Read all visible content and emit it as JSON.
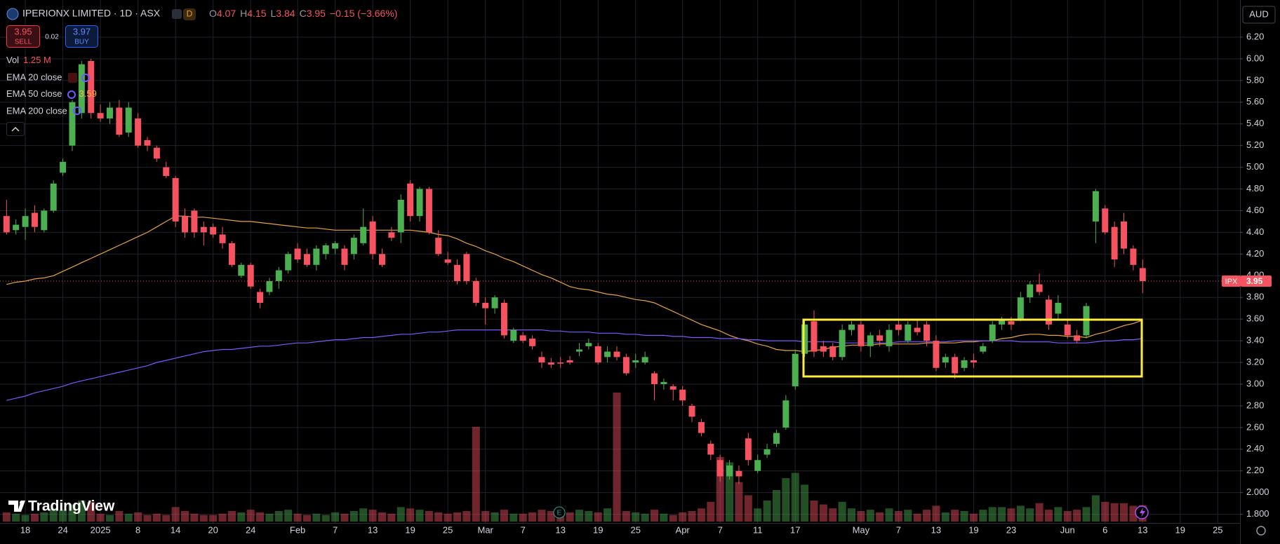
{
  "header": {
    "title": "IPERIONX LIMITED · 1D · ASX",
    "badge": "D",
    "ohlc": [
      {
        "label": "O",
        "value": "4.07"
      },
      {
        "label": "H",
        "value": "4.15"
      },
      {
        "label": "L",
        "value": "3.84"
      },
      {
        "label": "C",
        "value": "3.95"
      }
    ],
    "change": "−0.15 (−3.66%)",
    "ticker": "IPX"
  },
  "trade": {
    "sell_price": "3.95",
    "sell": "SELL",
    "spread": "0.02",
    "buy_price": "3.97",
    "buy": "BUY"
  },
  "indicators": [
    {
      "name": "Vol",
      "value": "1.25 M"
    },
    {
      "name": "EMA 20 close"
    },
    {
      "name": "EMA 50 close",
      "value": "3.59"
    },
    {
      "name": "EMA 200 close"
    }
  ],
  "currency": "AUD",
  "logo": "TradingView",
  "chart_data": {
    "type": "candlestick",
    "up_color": "#4caf50",
    "down_color": "#f7525f",
    "grid": true,
    "ylim": [
      1.72,
      6.51
    ],
    "yticks": [
      {
        "value": 1.8,
        "label": "1.800"
      },
      {
        "value": 2.0,
        "label": "2.000"
      },
      {
        "value": 2.2,
        "label": "2.20"
      },
      {
        "value": 2.4,
        "label": "2.40"
      },
      {
        "value": 2.6,
        "label": "2.60"
      },
      {
        "value": 2.8,
        "label": "2.80"
      },
      {
        "value": 3.0,
        "label": "3.00"
      },
      {
        "value": 3.2,
        "label": "3.20"
      },
      {
        "value": 3.4,
        "label": "3.40"
      },
      {
        "value": 3.6,
        "label": "3.60"
      },
      {
        "value": 3.8,
        "label": "3.80"
      },
      {
        "value": 4.0,
        "label": "4.00"
      },
      {
        "value": 4.2,
        "label": "4.20"
      },
      {
        "value": 4.4,
        "label": "4.40"
      },
      {
        "value": 4.6,
        "label": "4.60"
      },
      {
        "value": 4.8,
        "label": "4.80"
      },
      {
        "value": 5.0,
        "label": "5.00"
      },
      {
        "value": 5.2,
        "label": "5.20"
      },
      {
        "value": 5.4,
        "label": "5.40"
      },
      {
        "value": 5.6,
        "label": "5.60"
      },
      {
        "value": 5.8,
        "label": "5.80"
      },
      {
        "value": 6.0,
        "label": "6.00"
      },
      {
        "value": 6.2,
        "label": "6.20"
      }
    ],
    "categories": [
      null,
      null,
      "18",
      null,
      null,
      null,
      "24",
      null,
      null,
      null,
      "2025",
      null,
      null,
      null,
      "8",
      null,
      null,
      null,
      "14",
      null,
      null,
      null,
      "20",
      null,
      null,
      null,
      "24",
      null,
      null,
      null,
      null,
      "Feb",
      null,
      null,
      null,
      "7",
      null,
      null,
      null,
      "13",
      null,
      null,
      null,
      "19",
      null,
      null,
      null,
      "25",
      null,
      null,
      null,
      "Mar",
      null,
      null,
      null,
      "7",
      null,
      null,
      null,
      "13",
      null,
      null,
      null,
      "19",
      null,
      null,
      null,
      "25",
      null,
      null,
      null,
      null,
      "Apr",
      null,
      null,
      null,
      "7",
      null,
      null,
      null,
      "11",
      null,
      null,
      null,
      "17",
      null,
      null,
      null,
      null,
      null,
      null,
      "May",
      null,
      null,
      null,
      "7",
      null,
      null,
      null,
      "13",
      null,
      null,
      null,
      "19",
      null,
      null,
      null,
      "23",
      null,
      null,
      null,
      null,
      null,
      "Jun",
      null,
      null,
      null,
      "6",
      null,
      null,
      null,
      "13",
      null,
      null,
      null,
      "19",
      null,
      null,
      null,
      "25"
    ],
    "ohlc": [
      [
        4.55,
        4.7,
        4.38,
        4.4
      ],
      [
        4.42,
        4.52,
        4.38,
        4.47
      ],
      [
        4.45,
        4.62,
        4.33,
        4.55
      ],
      [
        4.58,
        4.65,
        4.4,
        4.45
      ],
      [
        4.42,
        4.62,
        4.4,
        4.6
      ],
      [
        4.6,
        4.88,
        4.58,
        4.85
      ],
      [
        4.95,
        5.08,
        4.92,
        5.05
      ],
      [
        5.2,
        5.62,
        5.15,
        5.6
      ],
      [
        5.5,
        5.98,
        5.45,
        5.95
      ],
      [
        5.98,
        6.0,
        5.45,
        5.5
      ],
      [
        5.5,
        5.58,
        5.42,
        5.45
      ],
      [
        5.45,
        5.6,
        5.4,
        5.55
      ],
      [
        5.55,
        5.62,
        5.28,
        5.3
      ],
      [
        5.32,
        5.6,
        5.28,
        5.55
      ],
      [
        5.45,
        5.5,
        5.18,
        5.2
      ],
      [
        5.25,
        5.28,
        5.15,
        5.2
      ],
      [
        5.18,
        5.2,
        5.05,
        5.08
      ],
      [
        5.0,
        5.05,
        4.9,
        4.92
      ],
      [
        4.9,
        4.92,
        4.45,
        4.5
      ],
      [
        4.55,
        4.62,
        4.35,
        4.4
      ],
      [
        4.6,
        4.62,
        4.35,
        4.4
      ],
      [
        4.45,
        4.5,
        4.28,
        4.4
      ],
      [
        4.45,
        4.48,
        4.35,
        4.38
      ],
      [
        4.38,
        4.45,
        4.25,
        4.3
      ],
      [
        4.3,
        4.32,
        4.08,
        4.1
      ],
      [
        4.0,
        4.12,
        3.98,
        4.1
      ],
      [
        4.1,
        4.12,
        3.88,
        3.9
      ],
      [
        3.85,
        3.88,
        3.7,
        3.75
      ],
      [
        3.85,
        3.98,
        3.82,
        3.95
      ],
      [
        3.95,
        4.08,
        3.88,
        4.05
      ],
      [
        4.05,
        4.22,
        4.02,
        4.2
      ],
      [
        4.25,
        4.3,
        4.12,
        4.15
      ],
      [
        4.2,
        4.25,
        4.08,
        4.1
      ],
      [
        4.1,
        4.28,
        4.05,
        4.25
      ],
      [
        4.2,
        4.3,
        4.15,
        4.28
      ],
      [
        4.25,
        4.32,
        4.2,
        4.3
      ],
      [
        4.25,
        4.28,
        4.05,
        4.1
      ],
      [
        4.2,
        4.38,
        4.15,
        4.35
      ],
      [
        4.3,
        4.62,
        4.28,
        4.45
      ],
      [
        4.5,
        4.55,
        4.15,
        4.2
      ],
      [
        4.2,
        4.25,
        4.08,
        4.1
      ],
      [
        4.4,
        4.45,
        4.32,
        4.35
      ],
      [
        4.4,
        4.75,
        4.3,
        4.7
      ],
      [
        4.85,
        4.88,
        4.5,
        4.55
      ],
      [
        4.55,
        4.82,
        4.5,
        4.8
      ],
      [
        4.8,
        4.82,
        4.38,
        4.4
      ],
      [
        4.35,
        4.42,
        4.18,
        4.2
      ],
      [
        4.15,
        4.22,
        4.1,
        4.12
      ],
      [
        4.1,
        4.15,
        3.92,
        3.95
      ],
      [
        4.2,
        4.22,
        3.92,
        3.95
      ],
      [
        3.95,
        3.98,
        3.72,
        3.75
      ],
      [
        3.75,
        3.8,
        3.55,
        3.7
      ],
      [
        3.7,
        3.82,
        3.65,
        3.8
      ],
      [
        3.75,
        3.78,
        3.42,
        3.45
      ],
      [
        3.4,
        3.52,
        3.38,
        3.5
      ],
      [
        3.45,
        3.48,
        3.38,
        3.4
      ],
      [
        3.42,
        3.45,
        3.32,
        3.35
      ],
      [
        3.25,
        3.3,
        3.15,
        3.2
      ],
      [
        3.2,
        3.24,
        3.15,
        3.18
      ],
      [
        3.2,
        3.25,
        3.15,
        3.19
      ],
      [
        3.22,
        3.26,
        3.18,
        3.2
      ],
      [
        3.3,
        3.38,
        3.26,
        3.32
      ],
      [
        3.35,
        3.42,
        3.32,
        3.38
      ],
      [
        3.35,
        3.38,
        3.18,
        3.2
      ],
      [
        3.25,
        3.35,
        3.2,
        3.3
      ],
      [
        3.3,
        3.35,
        3.22,
        3.25
      ],
      [
        3.25,
        3.28,
        3.08,
        3.1
      ],
      [
        3.2,
        3.28,
        3.15,
        3.22
      ],
      [
        3.2,
        3.3,
        3.18,
        3.25
      ],
      [
        3.1,
        3.12,
        2.85,
        3.0
      ],
      [
        3.0,
        3.05,
        2.95,
        3.02
      ],
      [
        2.98,
        3.0,
        2.85,
        2.95
      ],
      [
        2.95,
        2.98,
        2.8,
        2.85
      ],
      [
        2.8,
        2.82,
        2.65,
        2.7
      ],
      [
        2.65,
        2.68,
        2.52,
        2.55
      ],
      [
        2.45,
        2.48,
        2.3,
        2.35
      ],
      [
        2.3,
        2.35,
        2.1,
        2.15
      ],
      [
        2.15,
        2.3,
        2.12,
        2.25
      ],
      [
        2.2,
        2.25,
        2.08,
        2.15
      ],
      [
        2.5,
        2.55,
        2.25,
        2.3
      ],
      [
        2.2,
        2.35,
        2.18,
        2.3
      ],
      [
        2.35,
        2.45,
        2.32,
        2.4
      ],
      [
        2.45,
        2.58,
        2.42,
        2.55
      ],
      [
        2.6,
        2.9,
        2.58,
        2.85
      ],
      [
        2.98,
        3.32,
        2.95,
        3.28
      ],
      [
        3.28,
        3.6,
        3.25,
        3.55
      ],
      [
        3.58,
        3.68,
        3.25,
        3.3
      ],
      [
        3.35,
        3.4,
        3.25,
        3.3
      ],
      [
        3.35,
        3.38,
        3.22,
        3.25
      ],
      [
        3.25,
        3.55,
        3.22,
        3.5
      ],
      [
        3.5,
        3.58,
        3.45,
        3.55
      ],
      [
        3.55,
        3.58,
        3.3,
        3.35
      ],
      [
        3.35,
        3.48,
        3.25,
        3.45
      ],
      [
        3.45,
        3.5,
        3.35,
        3.4
      ],
      [
        3.35,
        3.55,
        3.3,
        3.5
      ],
      [
        3.55,
        3.6,
        3.45,
        3.5
      ],
      [
        3.4,
        3.58,
        3.38,
        3.55
      ],
      [
        3.52,
        3.6,
        3.45,
        3.48
      ],
      [
        3.55,
        3.58,
        3.35,
        3.4
      ],
      [
        3.4,
        3.45,
        3.12,
        3.15
      ],
      [
        3.2,
        3.28,
        3.15,
        3.25
      ],
      [
        3.25,
        3.28,
        3.05,
        3.1
      ],
      [
        3.15,
        3.25,
        3.12,
        3.22
      ],
      [
        3.22,
        3.28,
        3.15,
        3.2
      ],
      [
        3.3,
        3.38,
        3.28,
        3.35
      ],
      [
        3.4,
        3.58,
        3.38,
        3.55
      ],
      [
        3.55,
        3.62,
        3.5,
        3.6
      ],
      [
        3.58,
        3.62,
        3.5,
        3.55
      ],
      [
        3.6,
        3.85,
        3.58,
        3.8
      ],
      [
        3.8,
        3.95,
        3.75,
        3.92
      ],
      [
        3.92,
        4.02,
        3.82,
        3.85
      ],
      [
        3.78,
        3.82,
        3.5,
        3.55
      ],
      [
        3.65,
        3.82,
        3.6,
        3.75
      ],
      [
        3.55,
        3.6,
        3.42,
        3.45
      ],
      [
        3.45,
        3.5,
        3.38,
        3.4
      ],
      [
        3.45,
        3.75,
        3.42,
        3.72
      ],
      [
        4.5,
        4.8,
        4.3,
        4.78
      ],
      [
        4.62,
        4.65,
        4.38,
        4.4
      ],
      [
        4.45,
        4.5,
        4.08,
        4.15
      ],
      [
        4.5,
        4.58,
        4.2,
        4.25
      ],
      [
        4.25,
        4.28,
        4.05,
        4.1
      ],
      [
        4.07,
        4.15,
        3.84,
        3.95
      ],
      null,
      null,
      null,
      null,
      null,
      null,
      null,
      null
    ],
    "volume": [
      0.7,
      0.6,
      0.5,
      0.6,
      0.7,
      1.0,
      0.9,
      1.3,
      1.6,
      1.5,
      0.6,
      0.5,
      0.8,
      0.6,
      0.7,
      0.5,
      0.6,
      0.5,
      1.1,
      0.8,
      0.6,
      0.5,
      0.5,
      0.6,
      0.8,
      0.7,
      0.9,
      0.7,
      0.6,
      0.8,
      0.9,
      0.6,
      0.5,
      0.6,
      0.5,
      0.7,
      0.6,
      0.8,
      1.0,
      0.9,
      0.7,
      0.6,
      1.1,
      1.0,
      0.9,
      0.8,
      0.7,
      0.6,
      0.7,
      0.8,
      7.2,
      0.8,
      0.7,
      0.9,
      0.6,
      0.6,
      0.7,
      0.9,
      0.8,
      0.6,
      0.7,
      0.9,
      0.8,
      0.7,
      1.0,
      9.8,
      0.8,
      0.7,
      0.6,
      0.9,
      0.6,
      0.5,
      0.7,
      0.8,
      1.0,
      1.5,
      4.9,
      4.5,
      3.0,
      2.0,
      1.0,
      1.6,
      2.4,
      3.3,
      3.7,
      2.8,
      1.6,
      1.3,
      1.0,
      1.5,
      1.0,
      0.8,
      0.9,
      0.7,
      1.0,
      0.8,
      0.9,
      0.6,
      0.9,
      1.2,
      0.7,
      0.9,
      0.8,
      0.6,
      0.9,
      1.1,
      1.1,
      1.0,
      1.2,
      1.0,
      1.4,
      0.9,
      1.1,
      0.8,
      0.9,
      1.1,
      2.0,
      1.5,
      1.4,
      1.4,
      1.2,
      1.25,
      null,
      null,
      null,
      null,
      null,
      null,
      null,
      null
    ],
    "series": [
      {
        "color": "#e8a33a",
        "values": [
          3.92,
          3.94,
          3.95,
          3.97,
          3.98,
          4.0,
          4.04,
          4.08,
          4.12,
          4.16,
          4.2,
          4.24,
          4.28,
          4.32,
          4.36,
          4.4,
          4.45,
          4.5,
          4.55,
          4.55,
          4.54,
          4.54,
          4.53,
          4.52,
          4.51,
          4.5,
          4.5,
          4.49,
          4.48,
          4.47,
          4.46,
          4.45,
          4.44,
          4.44,
          4.43,
          4.42,
          4.42,
          4.42,
          4.42,
          4.42,
          4.42,
          4.42,
          4.42,
          4.42,
          4.41,
          4.4,
          4.38,
          4.37,
          4.34,
          4.3,
          4.27,
          4.23,
          4.2,
          4.16,
          4.13,
          4.09,
          4.05,
          4.01,
          3.98,
          3.94,
          3.9,
          3.88,
          3.87,
          3.85,
          3.83,
          3.82,
          3.8,
          3.78,
          3.77,
          3.75,
          3.71,
          3.67,
          3.63,
          3.59,
          3.55,
          3.52,
          3.49,
          3.45,
          3.42,
          3.4,
          3.37,
          3.35,
          3.32,
          3.31,
          3.31,
          3.3,
          3.31,
          3.32,
          3.34,
          3.35,
          3.36,
          3.36,
          3.36,
          3.37,
          3.37,
          3.37,
          3.37,
          3.37,
          3.38,
          3.38,
          3.38,
          3.38,
          3.39,
          3.39,
          3.4,
          3.4,
          3.42,
          3.43,
          3.45,
          3.46,
          3.46,
          3.45,
          3.45,
          3.44,
          3.44,
          3.43,
          3.46,
          3.48,
          3.51,
          3.54,
          3.56,
          3.59,
          null,
          null,
          null,
          null,
          null,
          null,
          null,
          null
        ]
      },
      {
        "color": "#7e57ff",
        "values": [
          2.85,
          2.87,
          2.89,
          2.92,
          2.94,
          2.96,
          2.98,
          3.01,
          3.03,
          3.05,
          3.07,
          3.09,
          3.11,
          3.13,
          3.15,
          3.17,
          3.2,
          3.22,
          3.24,
          3.26,
          3.28,
          3.3,
          3.31,
          3.32,
          3.32,
          3.33,
          3.34,
          3.35,
          3.35,
          3.36,
          3.37,
          3.38,
          3.38,
          3.39,
          3.4,
          3.41,
          3.41,
          3.42,
          3.43,
          3.43,
          3.44,
          3.45,
          3.46,
          3.46,
          3.47,
          3.48,
          3.48,
          3.49,
          3.5,
          3.5,
          3.5,
          3.5,
          3.5,
          3.5,
          3.5,
          3.5,
          3.5,
          3.5,
          3.49,
          3.49,
          3.48,
          3.48,
          3.48,
          3.47,
          3.47,
          3.47,
          3.46,
          3.46,
          3.45,
          3.45,
          3.45,
          3.44,
          3.44,
          3.43,
          3.43,
          3.43,
          3.42,
          3.42,
          3.42,
          3.41,
          3.41,
          3.4,
          3.4,
          3.4,
          3.4,
          3.39,
          3.39,
          3.39,
          3.39,
          3.38,
          3.38,
          3.38,
          3.38,
          3.38,
          3.38,
          3.39,
          3.39,
          3.39,
          3.39,
          3.39,
          3.39,
          3.4,
          3.4,
          3.4,
          3.4,
          3.4,
          3.4,
          3.4,
          3.39,
          3.39,
          3.39,
          3.39,
          3.38,
          3.38,
          3.38,
          3.38,
          3.39,
          3.4,
          3.4,
          3.41,
          3.41,
          3.42,
          null,
          null,
          null,
          null,
          null,
          null,
          null,
          null
        ]
      }
    ]
  }
}
